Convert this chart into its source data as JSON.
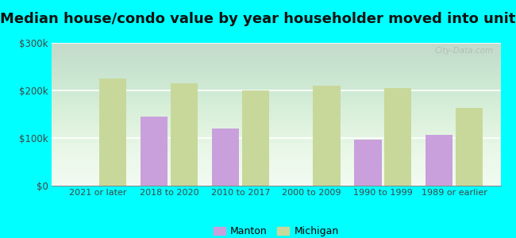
{
  "title": "Median house/condo value by year householder moved into unit",
  "categories": [
    "2021 or later",
    "2018 to 2020",
    "2010 to 2017",
    "2000 to 2009",
    "1990 to 1999",
    "1989 or earlier"
  ],
  "manton_values": [
    null,
    145000,
    120000,
    null,
    97000,
    107000
  ],
  "michigan_values": [
    225000,
    215000,
    200000,
    210000,
    205000,
    163000
  ],
  "manton_color": "#c9a0dc",
  "michigan_color": "#c8d89a",
  "background_outer": "#00ffff",
  "ylim": [
    0,
    300000
  ],
  "yticks": [
    0,
    100000,
    200000,
    300000
  ],
  "ytick_labels": [
    "$0",
    "$100k",
    "$200k",
    "$300k"
  ],
  "bar_width": 0.38,
  "watermark": "City-Data.com",
  "legend_manton": "Manton",
  "legend_michigan": "Michigan",
  "title_fontsize": 13
}
